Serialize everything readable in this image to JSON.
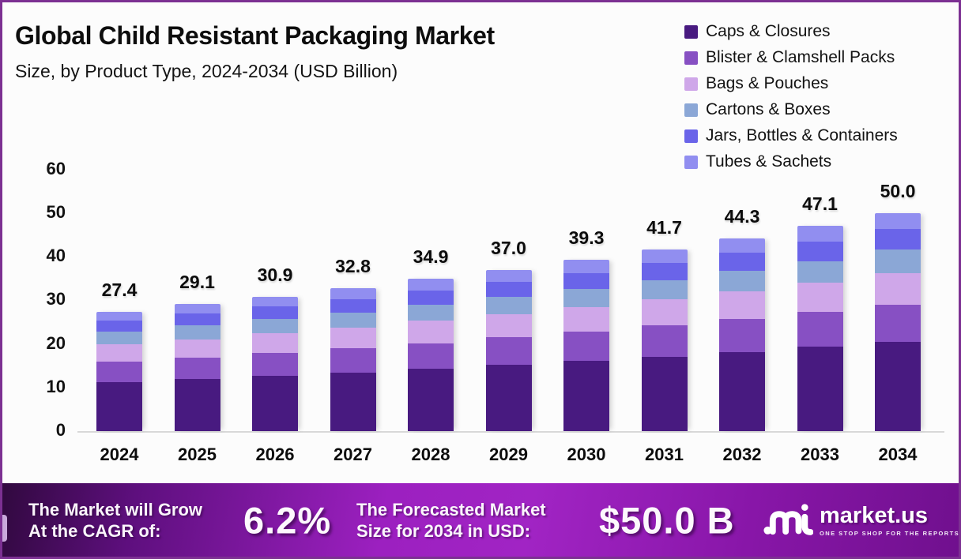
{
  "header": {
    "title": "Global Child Resistant Packaging Market",
    "subtitle": "Size, by Product Type, 2024-2034 (USD Billion)"
  },
  "chart_data": {
    "type": "bar",
    "stacked": true,
    "title": "Global Child Resistant Packaging Market",
    "subtitle": "Size, by Product Type, 2024-2034 (USD Billion)",
    "unit": "USD Billion",
    "grid": false,
    "legend_position": "top-right",
    "ylim": [
      0,
      60
    ],
    "y_ticks": [
      0,
      10,
      20,
      30,
      40,
      50,
      60
    ],
    "categories": [
      "2024",
      "2025",
      "2026",
      "2027",
      "2028",
      "2029",
      "2030",
      "2031",
      "2032",
      "2033",
      "2034"
    ],
    "totals": [
      27.4,
      29.1,
      30.9,
      32.8,
      34.9,
      37.0,
      39.3,
      41.7,
      44.3,
      47.1,
      50.0
    ],
    "total_labels": [
      "27.4",
      "29.1",
      "30.9",
      "32.8",
      "34.9",
      "37.0",
      "39.3",
      "41.7",
      "44.3",
      "47.1",
      "50.0"
    ],
    "series": [
      {
        "name": "Caps & Closures",
        "color": "#481a80",
        "values": [
          11.2,
          11.9,
          12.7,
          13.4,
          14.3,
          15.2,
          16.1,
          17.1,
          18.2,
          19.3,
          20.5
        ]
      },
      {
        "name": "Blister & Clamshell Packs",
        "color": "#8750c3",
        "values": [
          4.7,
          5.0,
          5.3,
          5.6,
          5.9,
          6.3,
          6.7,
          7.1,
          7.5,
          8.0,
          8.5
        ]
      },
      {
        "name": "Bags & Pouches",
        "color": "#cfa7e9",
        "values": [
          4.0,
          4.2,
          4.5,
          4.8,
          5.1,
          5.4,
          5.7,
          6.0,
          6.4,
          6.8,
          7.3
        ]
      },
      {
        "name": "Cartons & Boxes",
        "color": "#8ba7d6",
        "values": [
          2.9,
          3.1,
          3.2,
          3.4,
          3.7,
          3.9,
          4.1,
          4.4,
          4.7,
          4.9,
          5.3
        ]
      },
      {
        "name": "Jars, Bottles & Containers",
        "color": "#6a64e9",
        "values": [
          2.6,
          2.8,
          2.9,
          3.1,
          3.3,
          3.5,
          3.7,
          4.0,
          4.2,
          4.5,
          4.8
        ]
      },
      {
        "name": "Tubes & Sachets",
        "color": "#918ef0",
        "values": [
          2.0,
          2.1,
          2.3,
          2.5,
          2.6,
          2.7,
          3.0,
          3.1,
          3.3,
          3.6,
          3.6
        ]
      }
    ]
  },
  "banner": {
    "cagr_label_line1": "The Market will Grow",
    "cagr_label_line2": "At the CAGR of:",
    "cagr_value": "6.2%",
    "forecast_label_line1": "The Forecasted Market",
    "forecast_label_line2": "Size for 2034 in USD:",
    "forecast_value": "$50.0 B",
    "brand_name": "market.us",
    "brand_tagline": "ONE STOP SHOP FOR THE REPORTS"
  },
  "colors": {
    "page_border": "#7c3092",
    "background": "#fcfcfc",
    "axis_line": "#d8d8d8",
    "text": "#0e0e0e",
    "banner_text": "#ffffff",
    "banner_gradient_left": "#31093f",
    "banner_gradient_mid": "#a124c4",
    "banner_gradient_right": "#70108e",
    "edge_tab": "#c9a9db"
  }
}
